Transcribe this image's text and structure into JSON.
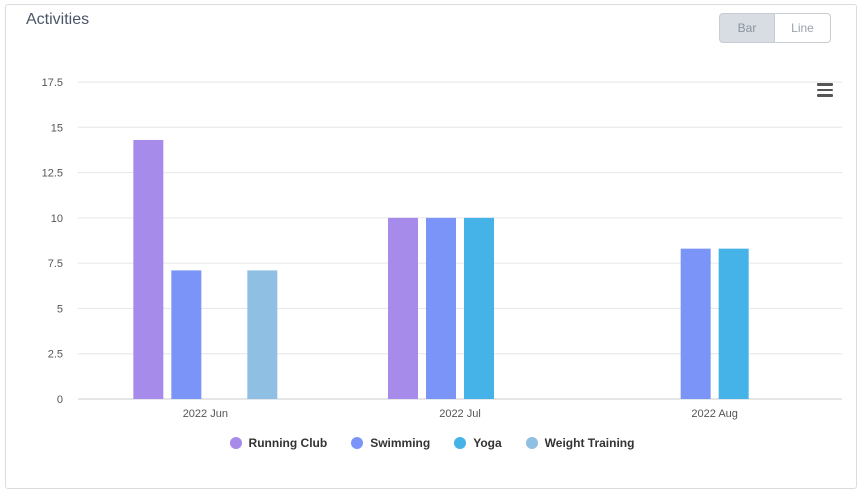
{
  "card": {
    "title": "Activities"
  },
  "toggle": {
    "bar_label": "Bar",
    "line_label": "Line"
  },
  "menu": {
    "icon": "hamburger-menu-icon"
  },
  "chart_data": {
    "type": "bar",
    "categories": [
      "2022 Jun",
      "2022 Jul",
      "2022 Aug"
    ],
    "series": [
      {
        "name": "Running Club",
        "color": "#a78bea",
        "values": [
          14.3,
          10,
          null
        ]
      },
      {
        "name": "Swimming",
        "color": "#7a95f7",
        "values": [
          7.1,
          10,
          8.3
        ]
      },
      {
        "name": "Yoga",
        "color": "#45b2e8",
        "values": [
          null,
          10,
          8.3
        ]
      },
      {
        "name": "Weight Training",
        "color": "#8fbfe3",
        "values": [
          7.1,
          null,
          null
        ]
      }
    ],
    "yticks": [
      "0",
      "2.5",
      "5",
      "7.5",
      "10",
      "12.5",
      "15",
      "17.5"
    ],
    "ylim": [
      0,
      17.5
    ],
    "grid": true,
    "legend_position": "bottom"
  }
}
